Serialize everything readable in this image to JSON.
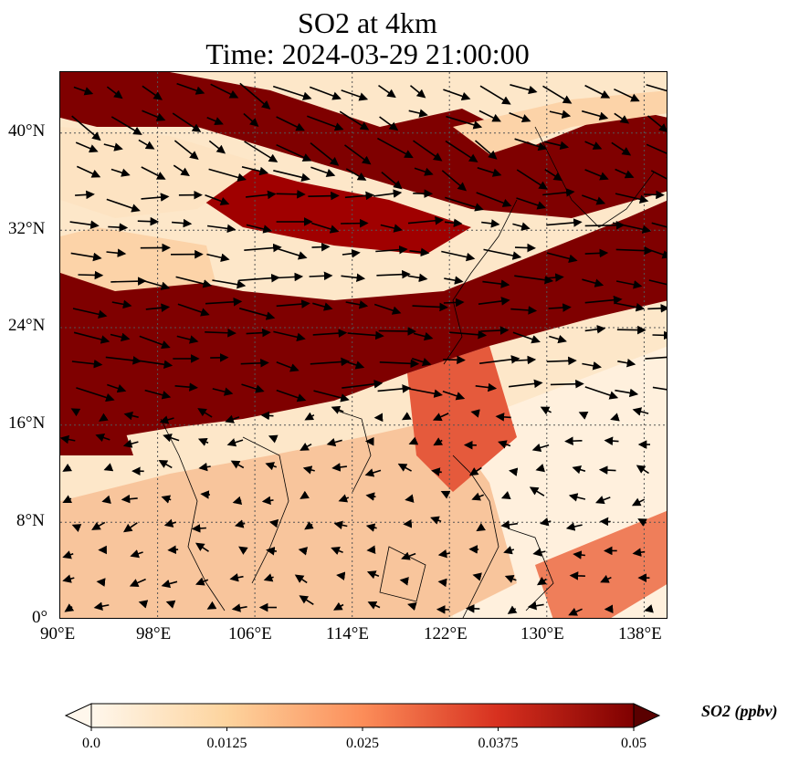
{
  "title": {
    "line1": "SO2 at 4km",
    "line2": "Time: 2024-03-29 21:00:00"
  },
  "map": {
    "projection": "PlateCarree",
    "lon_range": [
      90,
      140
    ],
    "lat_range": [
      0,
      45
    ],
    "gridlines": "dotted",
    "coastlines": true,
    "wind_vectors": true,
    "lon_ticks": [
      {
        "value": 90,
        "label": "90°E"
      },
      {
        "value": 98,
        "label": "98°E"
      },
      {
        "value": 106,
        "label": "106°E"
      },
      {
        "value": 114,
        "label": "114°E"
      },
      {
        "value": 122,
        "label": "122°E"
      },
      {
        "value": 130,
        "label": "130°E"
      },
      {
        "value": 138,
        "label": "138°E"
      }
    ],
    "lat_ticks": [
      {
        "value": 0,
        "label": "0°"
      },
      {
        "value": 8,
        "label": "8°N"
      },
      {
        "value": 16,
        "label": "16°N"
      },
      {
        "value": 24,
        "label": "24°N"
      },
      {
        "value": 32,
        "label": "32°N"
      },
      {
        "value": 40,
        "label": "40°N"
      }
    ]
  },
  "colorbar": {
    "title": "SO2 (ppbv)",
    "colormap": "OrRd",
    "extend": "both",
    "range": [
      0.0,
      0.05
    ],
    "ticks": [
      {
        "value": 0.0,
        "label": "0.0"
      },
      {
        "value": 0.0125,
        "label": "0.0125"
      },
      {
        "value": 0.025,
        "label": "0.025"
      },
      {
        "value": 0.0375,
        "label": "0.0375"
      },
      {
        "value": 0.05,
        "label": "0.05"
      }
    ],
    "colors": [
      "#fff7ec",
      "#fdd49e",
      "#fc8d59",
      "#d7301f",
      "#7f0000"
    ]
  }
}
